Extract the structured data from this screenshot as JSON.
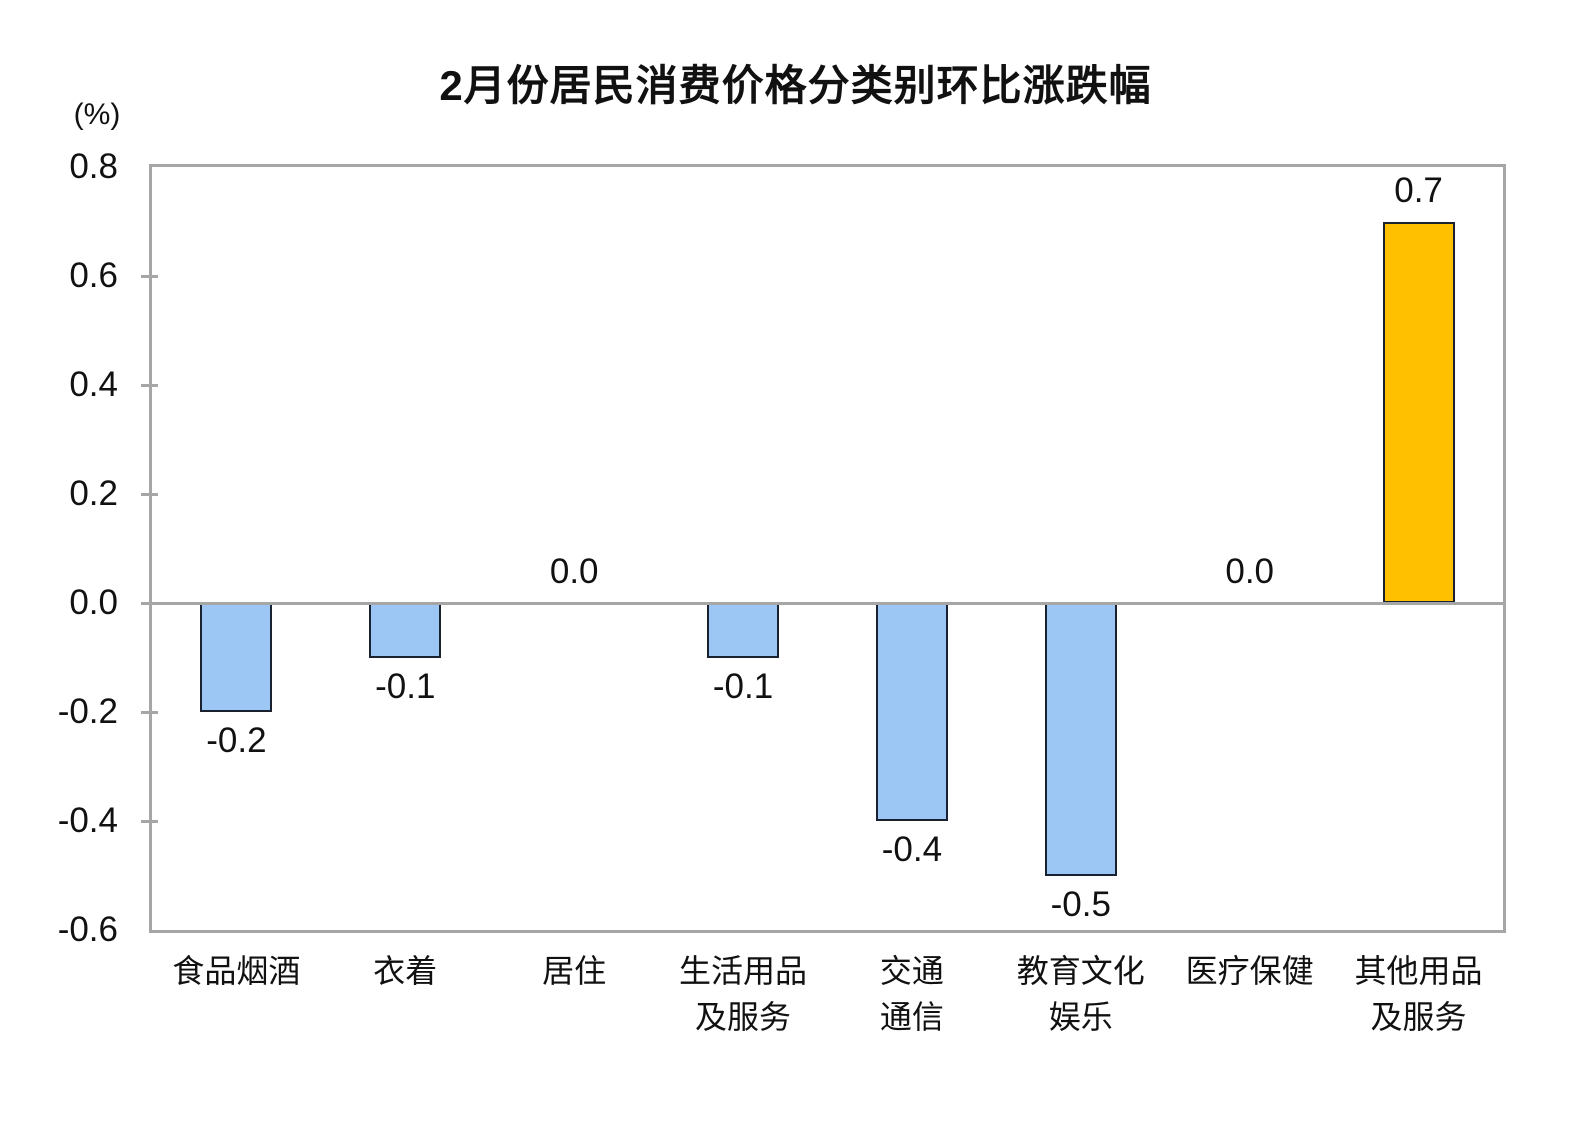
{
  "chart_data": {
    "type": "bar",
    "title": "2月份居民消费价格分类别环比涨跌幅",
    "unit_label": "(%)",
    "categories": [
      "食品烟酒",
      "衣着",
      "居住",
      "生活用品\n及服务",
      "交通\n通信",
      "教育文化\n娱乐",
      "医疗保健",
      "其他用品\n及服务"
    ],
    "values": [
      -0.2,
      -0.1,
      0.0,
      -0.1,
      -0.4,
      -0.5,
      0.0,
      0.7
    ],
    "value_labels": [
      "-0.2",
      "-0.1",
      "0.0",
      "-0.1",
      "-0.4",
      "-0.5",
      "0.0",
      "0.7"
    ],
    "ylim": [
      -0.6,
      0.8
    ],
    "y_ticks": [
      "0.8",
      "0.6",
      "0.4",
      "0.2",
      "0.0",
      "-0.2",
      "-0.4",
      "-0.6"
    ],
    "xlabel": "",
    "ylabel": "(%)",
    "grid": false,
    "legend": "none",
    "colors": {
      "bar_default": "#9CC7F5",
      "bar_highlight": "#FFC000",
      "highlight_index": 7,
      "bar_border": "#1A2230",
      "axis": "#A6A6A6",
      "text": "#111111"
    }
  }
}
